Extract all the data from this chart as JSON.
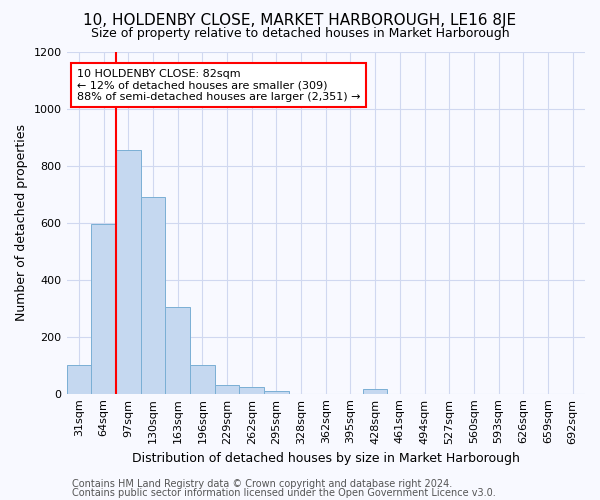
{
  "title": "10, HOLDENBY CLOSE, MARKET HARBOROUGH, LE16 8JE",
  "subtitle": "Size of property relative to detached houses in Market Harborough",
  "xlabel": "Distribution of detached houses by size in Market Harborough",
  "ylabel": "Number of detached properties",
  "footer1": "Contains HM Land Registry data © Crown copyright and database right 2024.",
  "footer2": "Contains public sector information licensed under the Open Government Licence v3.0.",
  "categories": [
    "31sqm",
    "64sqm",
    "97sqm",
    "130sqm",
    "163sqm",
    "196sqm",
    "229sqm",
    "262sqm",
    "295sqm",
    "328sqm",
    "362sqm",
    "395sqm",
    "428sqm",
    "461sqm",
    "494sqm",
    "527sqm",
    "560sqm",
    "593sqm",
    "626sqm",
    "659sqm",
    "692sqm"
  ],
  "bar_values": [
    100,
    595,
    855,
    690,
    305,
    100,
    32,
    22,
    10,
    0,
    0,
    0,
    15,
    0,
    0,
    0,
    0,
    0,
    0,
    0,
    0
  ],
  "bar_color": "#c5d8f0",
  "bar_edgecolor": "#7aafd4",
  "vline_x": 2,
  "vline_color": "red",
  "ylim": [
    0,
    1200
  ],
  "yticks": [
    0,
    200,
    400,
    600,
    800,
    1000,
    1200
  ],
  "annotation_text": "10 HOLDENBY CLOSE: 82sqm\n← 12% of detached houses are smaller (309)\n88% of semi-detached houses are larger (2,351) →",
  "annotation_box_facecolor": "white",
  "annotation_box_edgecolor": "red",
  "bg_color": "#f8f9ff",
  "grid_color": "#d0d8f0",
  "title_fontsize": 11,
  "subtitle_fontsize": 9,
  "ylabel_fontsize": 9,
  "xlabel_fontsize": 9,
  "tick_fontsize": 8,
  "footer_fontsize": 7
}
